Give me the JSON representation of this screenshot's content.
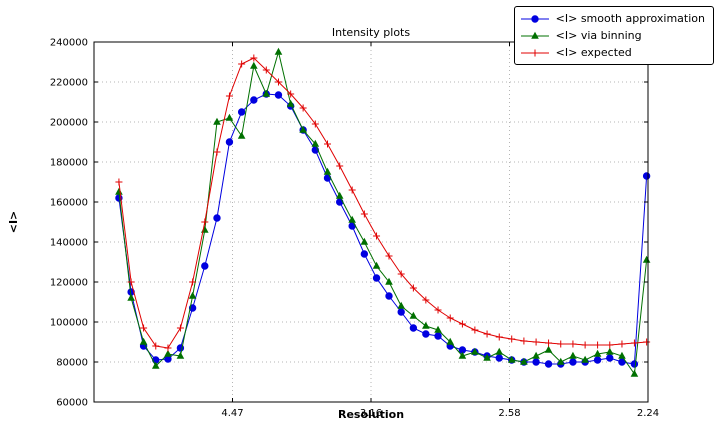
{
  "chart_data": {
    "type": "line",
    "title": "Intensity plots",
    "xlabel": "Resolution",
    "ylabel": "<I>",
    "xlim": [
      0,
      0.2
    ],
    "ylim": [
      60000,
      240000
    ],
    "grid": true,
    "legend_position": "upper right",
    "x_tick_positions": [
      0.05,
      0.1,
      0.15,
      0.2
    ],
    "x_tick_labels": [
      "4.47",
      "3.16",
      "2.58",
      "2.24"
    ],
    "y_ticks": [
      60000,
      80000,
      100000,
      120000,
      140000,
      160000,
      180000,
      200000,
      220000,
      240000
    ],
    "x": [
      0.009,
      0.0134,
      0.0179,
      0.0223,
      0.0267,
      0.0312,
      0.0356,
      0.04,
      0.0444,
      0.0489,
      0.0533,
      0.0577,
      0.0622,
      0.0666,
      0.071,
      0.0755,
      0.0799,
      0.0843,
      0.0887,
      0.0932,
      0.0976,
      0.102,
      0.1065,
      0.1109,
      0.1153,
      0.1198,
      0.1242,
      0.1286,
      0.133,
      0.1375,
      0.1419,
      0.1463,
      0.1508,
      0.1552,
      0.1596,
      0.1641,
      0.1685,
      0.1729,
      0.1773,
      0.1818,
      0.1862,
      0.1906,
      0.1951,
      0.1995
    ],
    "series": [
      {
        "name": "<I> smooth approximation",
        "color": "#0000e0",
        "marker": "circle",
        "values": [
          162000,
          115000,
          88000,
          81000,
          81500,
          87000,
          107000,
          128000,
          152000,
          190000,
          205000,
          211000,
          214000,
          213500,
          208000,
          196000,
          186000,
          172000,
          160000,
          148000,
          134000,
          122000,
          113000,
          105000,
          97000,
          94000,
          93000,
          88000,
          86000,
          85000,
          83000,
          82000,
          81000,
          80000,
          80000,
          79000,
          79000,
          80000,
          80000,
          81000,
          82000,
          80000,
          79000,
          173000
        ]
      },
      {
        "name": "<I> via binning",
        "color": "#007000",
        "marker": "triangle",
        "values": [
          165000,
          112000,
          90000,
          78000,
          84000,
          83000,
          113000,
          146000,
          200000,
          202000,
          193000,
          228000,
          214000,
          235000,
          209000,
          196000,
          189000,
          175000,
          163000,
          151000,
          140000,
          128000,
          120000,
          108000,
          103000,
          98000,
          96000,
          90000,
          83000,
          85000,
          82000,
          85000,
          81000,
          80000,
          83000,
          86000,
          80000,
          83000,
          81000,
          84000,
          85000,
          83000,
          74000,
          131000
        ]
      },
      {
        "name": "<I> expected",
        "color": "#e00000",
        "marker": "plus",
        "values": [
          170000,
          120000,
          97000,
          88000,
          87000,
          97000,
          120000,
          150000,
          185000,
          213000,
          229000,
          232000,
          226000,
          220000,
          214000,
          207000,
          199000,
          189000,
          178000,
          166000,
          154000,
          143000,
          133000,
          124000,
          117000,
          111000,
          106000,
          102000,
          99000,
          96000,
          94000,
          92500,
          91500,
          90500,
          90000,
          89500,
          89000,
          89000,
          88500,
          88500,
          88500,
          89000,
          89500,
          90000
        ]
      }
    ]
  }
}
